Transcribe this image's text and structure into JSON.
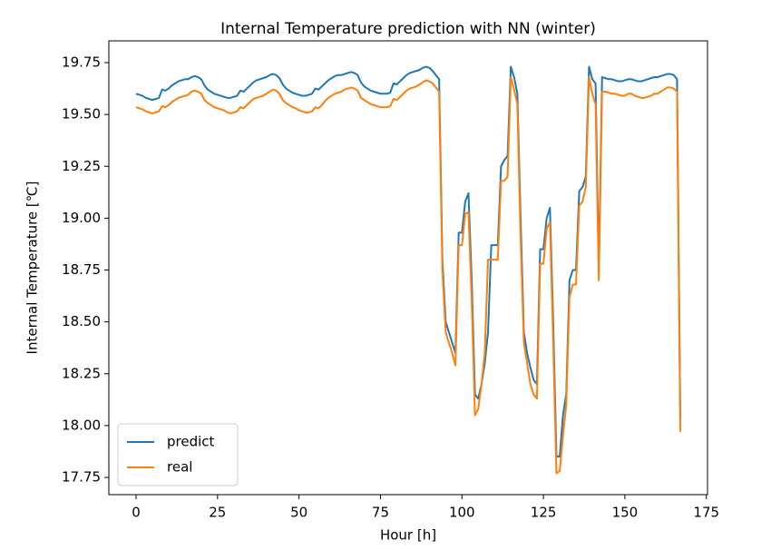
{
  "chart_data": {
    "type": "line",
    "title": "Internal Temperature prediction with NN (winter)",
    "xlabel": "Hour [h]",
    "ylabel": "Internal Temperature [℃]",
    "legend": "lower left",
    "x": [
      0,
      1,
      2,
      3,
      4,
      5,
      6,
      7,
      8,
      9,
      10,
      11,
      12,
      13,
      14,
      15,
      16,
      17,
      18,
      19,
      20,
      21,
      22,
      23,
      24,
      25,
      26,
      27,
      28,
      29,
      30,
      31,
      32,
      33,
      34,
      35,
      36,
      37,
      38,
      39,
      40,
      41,
      42,
      43,
      44,
      45,
      46,
      47,
      48,
      49,
      50,
      51,
      52,
      53,
      54,
      55,
      56,
      57,
      58,
      59,
      60,
      61,
      62,
      63,
      64,
      65,
      66,
      67,
      68,
      69,
      70,
      71,
      72,
      73,
      74,
      75,
      76,
      77,
      78,
      79,
      80,
      81,
      82,
      83,
      84,
      85,
      86,
      87,
      88,
      89,
      90,
      91,
      92,
      93,
      94,
      95,
      96,
      97,
      98,
      99,
      100,
      101,
      102,
      103,
      104,
      105,
      106,
      107,
      108,
      109,
      110,
      111,
      112,
      113,
      114,
      115,
      116,
      117,
      118,
      119,
      120,
      121,
      122,
      123,
      124,
      125,
      126,
      127,
      128,
      129,
      130,
      131,
      132,
      133,
      134,
      135,
      136,
      137,
      138,
      139,
      140,
      141,
      142,
      143,
      144,
      145,
      146,
      147,
      148,
      149,
      150,
      151,
      152,
      153,
      154,
      155,
      156,
      157,
      158,
      159,
      160,
      161,
      162,
      163,
      164,
      165,
      166,
      167
    ],
    "series": [
      {
        "name": "predict",
        "color": "#1f77b4",
        "values": [
          19.6,
          19.595,
          19.59,
          19.58,
          19.575,
          19.57,
          19.575,
          19.58,
          19.62,
          19.615,
          19.625,
          19.64,
          19.65,
          19.66,
          19.665,
          19.67,
          19.67,
          19.68,
          19.685,
          19.68,
          19.67,
          19.64,
          19.62,
          19.61,
          19.6,
          19.595,
          19.59,
          19.585,
          19.58,
          19.58,
          19.585,
          19.59,
          19.615,
          19.61,
          19.625,
          19.64,
          19.655,
          19.665,
          19.67,
          19.675,
          19.68,
          19.69,
          19.695,
          19.69,
          19.675,
          19.645,
          19.625,
          19.615,
          19.605,
          19.6,
          19.595,
          19.59,
          19.59,
          19.595,
          19.6,
          19.625,
          19.62,
          19.635,
          19.65,
          19.665,
          19.675,
          19.685,
          19.69,
          19.69,
          19.695,
          19.7,
          19.705,
          19.7,
          19.69,
          19.655,
          19.635,
          19.625,
          19.615,
          19.61,
          19.605,
          19.6,
          19.6,
          19.6,
          19.605,
          19.65,
          19.645,
          19.66,
          19.675,
          19.69,
          19.7,
          19.705,
          19.71,
          19.715,
          19.725,
          19.73,
          19.725,
          19.71,
          19.69,
          19.67,
          18.8,
          18.5,
          18.45,
          18.4,
          18.35,
          18.93,
          18.93,
          19.08,
          19.12,
          18.7,
          18.15,
          18.13,
          18.2,
          18.3,
          18.45,
          18.87,
          18.87,
          18.87,
          19.25,
          19.28,
          19.3,
          19.73,
          19.68,
          19.6,
          19.0,
          18.45,
          18.35,
          18.28,
          18.22,
          18.2,
          18.85,
          18.85,
          19.0,
          19.05,
          18.5,
          17.85,
          17.85,
          18.05,
          18.15,
          18.7,
          18.75,
          18.75,
          19.13,
          19.15,
          19.2,
          19.73,
          19.67,
          19.65,
          18.75,
          19.68,
          19.675,
          19.67,
          19.67,
          19.665,
          19.66,
          19.66,
          19.665,
          19.67,
          19.67,
          19.665,
          19.66,
          19.66,
          19.665,
          19.67,
          19.675,
          19.68,
          19.68,
          19.685,
          19.69,
          19.695,
          19.695,
          19.69,
          19.67,
          18.03
        ]
      },
      {
        "name": "real",
        "color": "#ff7f0e",
        "values": [
          19.535,
          19.53,
          19.525,
          19.515,
          19.51,
          19.505,
          19.51,
          19.515,
          19.54,
          19.535,
          19.545,
          19.56,
          19.57,
          19.58,
          19.585,
          19.59,
          19.595,
          19.61,
          19.615,
          19.61,
          19.6,
          19.57,
          19.555,
          19.545,
          19.535,
          19.53,
          19.525,
          19.52,
          19.51,
          19.505,
          19.51,
          19.515,
          19.535,
          19.53,
          19.545,
          19.56,
          19.575,
          19.58,
          19.585,
          19.59,
          19.6,
          19.61,
          19.62,
          19.615,
          19.6,
          19.57,
          19.555,
          19.545,
          19.535,
          19.53,
          19.52,
          19.515,
          19.51,
          19.51,
          19.515,
          19.535,
          19.53,
          19.545,
          19.565,
          19.58,
          19.59,
          19.6,
          19.605,
          19.61,
          19.62,
          19.625,
          19.63,
          19.625,
          19.615,
          19.58,
          19.57,
          19.56,
          19.55,
          19.545,
          19.54,
          19.535,
          19.535,
          19.535,
          19.54,
          19.575,
          19.57,
          19.585,
          19.6,
          19.615,
          19.625,
          19.63,
          19.635,
          19.645,
          19.655,
          19.665,
          19.66,
          19.65,
          19.63,
          19.61,
          18.75,
          18.45,
          18.4,
          18.35,
          18.29,
          18.87,
          18.87,
          19.02,
          19.03,
          18.6,
          18.05,
          18.08,
          18.2,
          18.35,
          18.8,
          18.8,
          18.8,
          18.8,
          19.18,
          19.18,
          19.2,
          19.68,
          19.62,
          19.55,
          18.9,
          18.4,
          18.3,
          18.2,
          18.15,
          18.13,
          18.78,
          18.78,
          18.95,
          18.98,
          18.4,
          17.77,
          17.78,
          17.95,
          18.1,
          18.62,
          18.68,
          18.68,
          19.06,
          19.08,
          19.15,
          19.68,
          19.6,
          19.55,
          18.7,
          19.61,
          19.61,
          19.605,
          19.6,
          19.6,
          19.595,
          19.59,
          19.59,
          19.6,
          19.6,
          19.59,
          19.585,
          19.58,
          19.58,
          19.585,
          19.59,
          19.6,
          19.6,
          19.61,
          19.62,
          19.63,
          19.63,
          19.625,
          19.61,
          17.97
        ]
      }
    ],
    "xlim": [
      -8.35,
      175.35
    ],
    "xticks": [
      0,
      25,
      50,
      75,
      100,
      125,
      150,
      175
    ],
    "ylim": [
      17.667,
      19.855
    ],
    "yticks": [
      17.75,
      {
        "value": 18,
        "label": "18.00"
      },
      18.25,
      {
        "value": 18.5,
        "label": "18.50"
      },
      18.75,
      {
        "value": 19,
        "label": "19.00"
      },
      19.25,
      {
        "value": 19.5,
        "label": "19.50"
      },
      19.75
    ]
  }
}
